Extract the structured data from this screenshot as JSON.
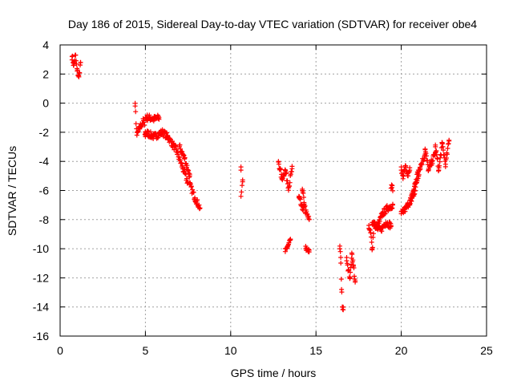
{
  "chart_data": {
    "type": "scatter",
    "title": "Day 186 of 2015, Sidereal Day-to-day VTEC variation (SDTVAR) for receiver obe4",
    "xlabel": "GPS time / hours",
    "ylabel": "SDTVAR / TECUs",
    "xlim": [
      0,
      25
    ],
    "ylim": [
      -16,
      4
    ],
    "xticks": [
      0,
      5,
      10,
      15,
      20,
      25
    ],
    "yticks": [
      4,
      2,
      0,
      -2,
      -4,
      -6,
      -8,
      -10,
      -12,
      -14,
      -16
    ],
    "grid": true,
    "marker": "+",
    "color": "#ff0000",
    "segments": [
      {
        "x0": 0.7,
        "x1": 1.2,
        "points": [
          [
            0.7,
            3.2
          ],
          [
            0.8,
            2.6
          ],
          [
            0.9,
            3.3
          ],
          [
            1.0,
            2.2
          ],
          [
            1.1,
            1.8
          ],
          [
            1.2,
            2.8
          ]
        ]
      },
      {
        "x0": 4.4,
        "x1": 5.0,
        "points": [
          [
            4.4,
            -0.2
          ],
          [
            4.5,
            -2.2
          ],
          [
            4.7,
            -1.6
          ],
          [
            4.9,
            -1.2
          ],
          [
            5.0,
            -2.2
          ]
        ]
      },
      {
        "x0": 5.0,
        "x1": 5.8,
        "points": [
          [
            5.2,
            -1.0
          ],
          [
            5.5,
            -1.1
          ],
          [
            5.8,
            -1.0
          ]
        ]
      },
      {
        "x0": 5.0,
        "x1": 6.3,
        "points": [
          [
            5.0,
            -2.0
          ],
          [
            5.5,
            -2.3
          ],
          [
            6.0,
            -2.0
          ],
          [
            6.3,
            -2.3
          ]
        ]
      },
      {
        "x0": 6.3,
        "x1": 7.5,
        "points": [
          [
            6.3,
            -2.3
          ],
          [
            6.8,
            -3.2
          ],
          [
            7.2,
            -4.5
          ],
          [
            7.5,
            -5.5
          ]
        ]
      },
      {
        "x0": 7.0,
        "x1": 7.6,
        "points": [
          [
            7.0,
            -3.0
          ],
          [
            7.3,
            -3.8
          ],
          [
            7.6,
            -5.0
          ]
        ]
      },
      {
        "x0": 7.6,
        "x1": 8.2,
        "points": [
          [
            7.6,
            -5.6
          ],
          [
            7.9,
            -6.5
          ],
          [
            8.2,
            -7.2
          ]
        ]
      },
      {
        "x0": 10.6,
        "x1": 10.7,
        "points": [
          [
            10.6,
            -4.6
          ],
          [
            10.6,
            -6.4
          ],
          [
            10.7,
            -5.4
          ]
        ]
      },
      {
        "x0": 12.8,
        "x1": 13.6,
        "points": [
          [
            12.8,
            -4.0
          ],
          [
            13.0,
            -5.2
          ],
          [
            13.2,
            -4.6
          ],
          [
            13.4,
            -5.8
          ],
          [
            13.6,
            -4.5
          ]
        ]
      },
      {
        "x0": 13.2,
        "x1": 13.5,
        "points": [
          [
            13.2,
            -10.2
          ],
          [
            13.35,
            -9.8
          ],
          [
            13.5,
            -9.4
          ]
        ]
      },
      {
        "x0": 14.0,
        "x1": 14.3,
        "points": [
          [
            14.0,
            -6.5
          ],
          [
            14.2,
            -7.3
          ],
          [
            14.3,
            -7.0
          ]
        ]
      },
      {
        "x0": 14.2,
        "x1": 14.6,
        "points": [
          [
            14.2,
            -6.0
          ],
          [
            14.4,
            -7.5
          ],
          [
            14.6,
            -8.0
          ]
        ]
      },
      {
        "x0": 14.4,
        "x1": 14.6,
        "points": [
          [
            14.4,
            -10.0
          ],
          [
            14.6,
            -10.1
          ]
        ]
      },
      {
        "x0": 16.4,
        "x1": 16.6,
        "points": [
          [
            16.4,
            -10.0
          ],
          [
            16.45,
            -10.6
          ],
          [
            16.5,
            -12.8
          ],
          [
            16.55,
            -14.0
          ],
          [
            16.6,
            -14.2
          ]
        ]
      },
      {
        "x0": 16.8,
        "x1": 17.3,
        "points": [
          [
            16.8,
            -10.6
          ],
          [
            16.9,
            -11.5
          ],
          [
            17.0,
            -12.0
          ],
          [
            17.1,
            -10.3
          ],
          [
            17.2,
            -11.2
          ],
          [
            17.3,
            -12.3
          ]
        ]
      },
      {
        "x0": 18.1,
        "x1": 18.4,
        "points": [
          [
            18.1,
            -8.6
          ],
          [
            18.2,
            -8.9
          ],
          [
            18.3,
            -10.0
          ],
          [
            18.4,
            -8.4
          ]
        ]
      },
      {
        "x0": 18.3,
        "x1": 19.5,
        "points": [
          [
            18.3,
            -8.2
          ],
          [
            18.6,
            -8.5
          ],
          [
            18.9,
            -7.6
          ],
          [
            19.2,
            -7.2
          ],
          [
            19.5,
            -7.0
          ]
        ]
      },
      {
        "x0": 18.5,
        "x1": 19.4,
        "points": [
          [
            18.5,
            -8.6
          ],
          [
            18.8,
            -8.7
          ],
          [
            19.1,
            -8.2
          ],
          [
            19.4,
            -8.4
          ]
        ]
      },
      {
        "x0": 19.4,
        "x1": 19.5,
        "points": [
          [
            19.45,
            -5.8
          ]
        ]
      },
      {
        "x0": 20.0,
        "x1": 20.5,
        "points": [
          [
            20.0,
            -4.6
          ],
          [
            20.1,
            -5.0
          ],
          [
            20.25,
            -4.4
          ],
          [
            20.4,
            -5.0
          ],
          [
            20.5,
            -4.6
          ]
        ]
      },
      {
        "x0": 20.0,
        "x1": 21.0,
        "points": [
          [
            20.0,
            -7.6
          ],
          [
            20.3,
            -7.2
          ],
          [
            20.6,
            -6.5
          ],
          [
            20.8,
            -5.6
          ],
          [
            21.0,
            -4.6
          ]
        ]
      },
      {
        "x0": 20.5,
        "x1": 21.4,
        "points": [
          [
            20.5,
            -7.0
          ],
          [
            20.8,
            -6.0
          ],
          [
            21.1,
            -4.4
          ],
          [
            21.4,
            -3.5
          ]
        ]
      },
      {
        "x0": 21.4,
        "x1": 22.0,
        "points": [
          [
            21.4,
            -3.2
          ],
          [
            21.6,
            -4.6
          ],
          [
            21.8,
            -4.0
          ],
          [
            22.0,
            -3.4
          ]
        ]
      },
      {
        "x0": 22.0,
        "x1": 22.8,
        "points": [
          [
            22.0,
            -3.0
          ],
          [
            22.2,
            -4.6
          ],
          [
            22.4,
            -2.8
          ],
          [
            22.6,
            -4.2
          ],
          [
            22.8,
            -2.6
          ]
        ]
      }
    ]
  }
}
